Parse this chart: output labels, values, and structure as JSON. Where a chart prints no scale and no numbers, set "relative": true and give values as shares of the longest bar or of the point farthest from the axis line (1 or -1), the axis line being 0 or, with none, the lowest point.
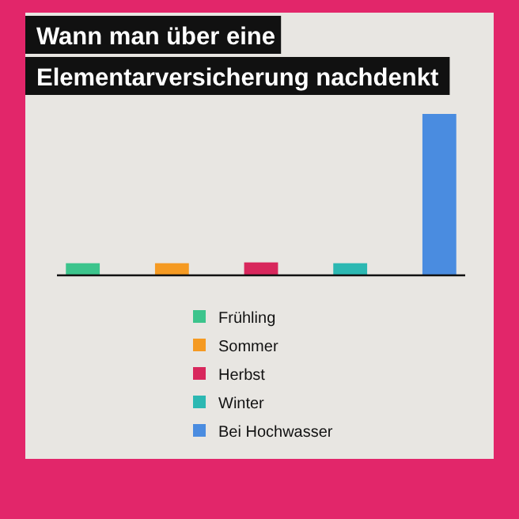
{
  "chart_data": {
    "type": "bar",
    "title": "Wann man über eine Elementarversicherung nachdenkt",
    "relative": true,
    "legend": "bottom",
    "stacked": true,
    "categories": [
      null,
      null,
      null,
      null,
      null
    ],
    "series": [
      {
        "name": "Frühling",
        "color": "#3cc48c",
        "values": [
          0.075,
          null,
          null,
          null,
          null
        ]
      },
      {
        "name": "Sommer",
        "color": "#f59a22",
        "values": [
          null,
          0.075,
          null,
          null,
          null
        ]
      },
      {
        "name": "Herbst",
        "color": "#d8275c",
        "values": [
          null,
          null,
          0.08,
          null,
          null
        ]
      },
      {
        "name": "Winter",
        "color": "#2cb8b2",
        "values": [
          null,
          null,
          null,
          0.075,
          null
        ]
      },
      {
        "name": "Bei Hochwasser",
        "color": "#4a8ce0",
        "values": [
          null,
          null,
          null,
          null,
          1
        ]
      }
    ]
  }
}
